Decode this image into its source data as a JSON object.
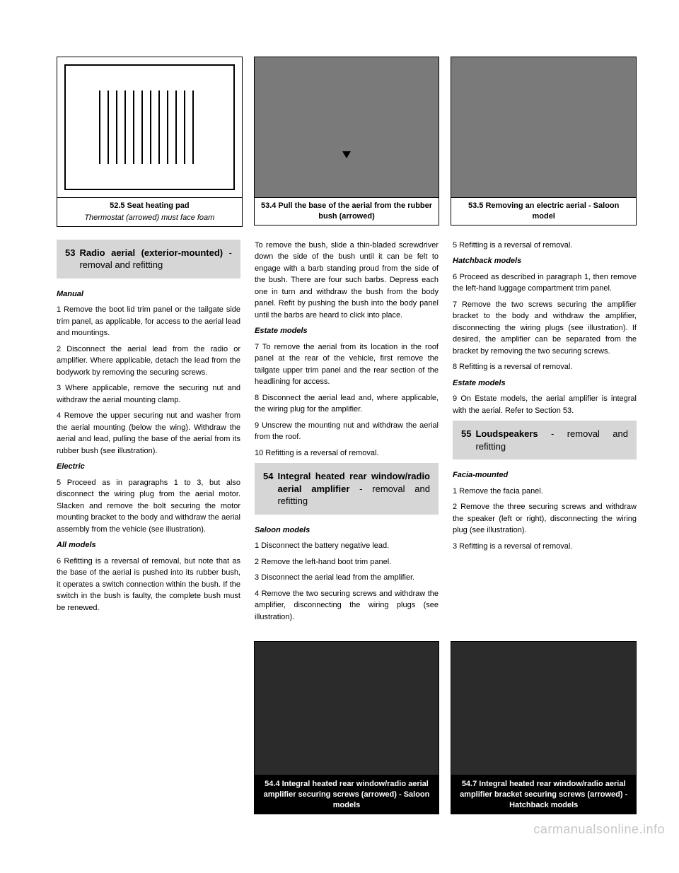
{
  "figures_top": [
    {
      "caption_main": "52.5 Seat heating pad",
      "caption_sub": "Thermostat (arrowed) must face foam",
      "kind": "drawing"
    },
    {
      "caption_main": "53.4 Pull the base of the aerial from the rubber bush (arrowed)",
      "caption_sub": "",
      "kind": "photo"
    },
    {
      "caption_main": "53.5 Removing an electric aerial - Saloon model",
      "caption_sub": "",
      "kind": "photo"
    }
  ],
  "sections": [
    {
      "num": "53",
      "title_bold": "Radio aerial (exterior-mounted)",
      "title_rest": " - removal and refitting"
    },
    {
      "num": "54",
      "title_bold": "Integral heated rear window/radio aerial amplifier",
      "title_rest": " - removal and refitting"
    },
    {
      "num": "55",
      "title_bold": "Loudspeakers",
      "title_rest": " - removal and refitting"
    }
  ],
  "col1": {
    "heading1": "Manual",
    "p1": "1 Remove the boot lid trim panel or the tailgate side trim panel, as applicable, for access to the aerial lead and mountings.",
    "p2": "2 Disconnect the aerial lead from the radio or amplifier. Where applicable, detach the lead from the bodywork by removing the securing screws.",
    "p3": "3 Where applicable, remove the securing nut and withdraw the aerial mounting clamp.",
    "p4": "4 Remove the upper securing nut and washer from the aerial mounting (below the wing). Withdraw the aerial and lead, pulling the base of the aerial from its rubber bush (see illustration).",
    "heading2": "Electric",
    "p5": "5 Proceed as in paragraphs 1 to 3, but also disconnect the wiring plug from the aerial motor. Slacken and remove the bolt securing the motor mounting bracket to the body and withdraw the aerial assembly from the vehicle (see illustration).",
    "heading3": "All models",
    "p6": "6 Refitting is a reversal of removal, but note that as the base of the aerial is pushed into its rubber bush, it operates a switch connection within the bush. If the switch in the bush is faulty, the complete bush must be renewed."
  },
  "col2": {
    "p1": "To remove the bush, slide a thin-bladed screwdriver down the side of the bush until it can be felt to engage with a barb standing proud from the side of the bush. There are four such barbs. Depress each one in turn and withdraw the bush from the body panel. Refit by pushing the bush into the body panel until the barbs are heard to click into place.",
    "heading1": "Estate models",
    "p2": "7 To remove the aerial from its location in the roof panel at the rear of the vehicle, first remove the tailgate upper trim panel and the rear section of the headlining for access.",
    "p3": "8 Disconnect the aerial lead and, where applicable, the wiring plug for the amplifier.",
    "p4": "9 Unscrew the mounting nut and withdraw the aerial from the roof.",
    "p5": "10 Refitting is a reversal of removal.",
    "heading2": "Saloon models",
    "p6": "1 Disconnect the battery negative lead.",
    "p7": "2 Remove the left-hand boot trim panel.",
    "p8": "3 Disconnect the aerial lead from the amplifier.",
    "p9": "4 Remove the two securing screws and withdraw the amplifier, disconnecting the wiring plugs (see illustration)."
  },
  "col3": {
    "p1": "5 Refitting is a reversal of removal.",
    "heading1": "Hatchback models",
    "p2": "6 Proceed as described in paragraph 1, then remove the left-hand luggage compartment trim panel.",
    "p3": "7 Remove the two screws securing the amplifier bracket to the body and withdraw the amplifier, disconnecting the wiring plugs (see illustration). If desired, the amplifier can be separated from the bracket by removing the two securing screws.",
    "p4": "8 Refitting is a reversal of removal.",
    "heading2": "Estate models",
    "p5": "9 On Estate models, the aerial amplifier is integral with the aerial. Refer to Section 53.",
    "heading3": "Facia-mounted",
    "p6": "1 Remove the facia panel.",
    "p7": "2 Remove the three securing screws and withdraw the speaker (left or right), disconnecting the wiring plug (see illustration).",
    "p8": "3 Refitting is a reversal of removal."
  },
  "figures_bottom": [
    {
      "caption": "54.4 Integral heated rear window/radio aerial amplifier securing screws (arrowed) - Saloon models"
    },
    {
      "caption": "54.7 Integral heated rear window/radio aerial amplifier bracket securing screws (arrowed) - Hatchback models"
    }
  ],
  "watermark": "carmanualsonline.info"
}
